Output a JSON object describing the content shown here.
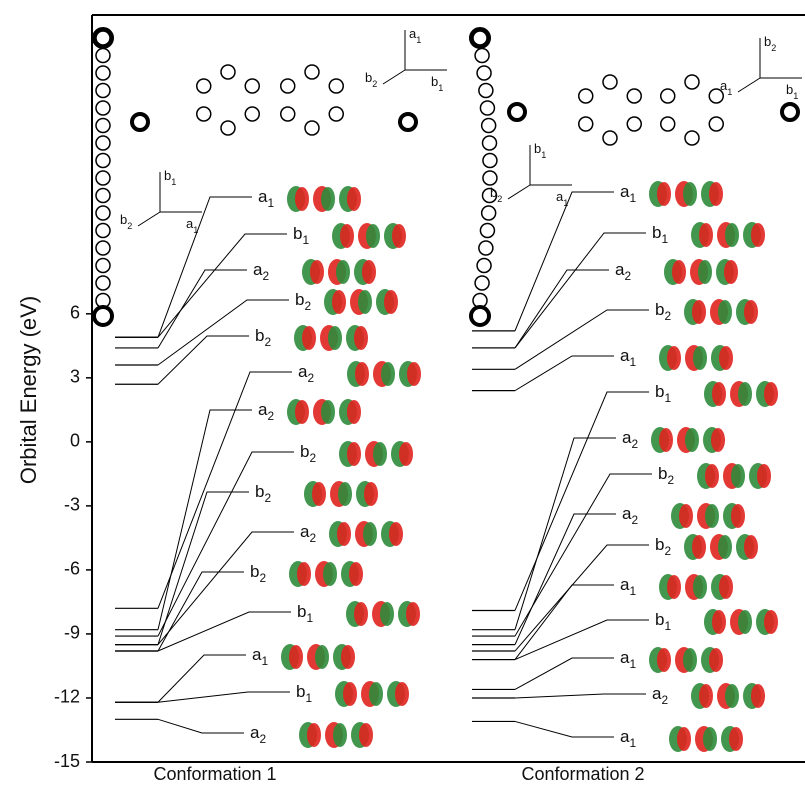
{
  "chart_data": {
    "type": "energy-levels",
    "y_label": "Orbital Energy (eV)",
    "ylim": [
      -15,
      20
    ],
    "yticks": [
      6,
      3,
      0,
      -3,
      -6,
      -9,
      -12,
      -15
    ],
    "conformations": [
      {
        "name": "Conformation 1",
        "labels": [
          "a1",
          "b1",
          "a2",
          "b2",
          "b2",
          "a2",
          "a2",
          "b2",
          "b2",
          "a2",
          "b2",
          "b1",
          "a1",
          "b1",
          "a2"
        ],
        "energies": [
          4.9,
          4.9,
          4.4,
          3.6,
          2.7,
          -7.8,
          -8.8,
          -9.1,
          -9.5,
          -9.5,
          -9.8,
          -9.8,
          -12.2,
          -12.2,
          -13.0
        ],
        "frames": [
          [
            "a1",
            "b1",
            "b2"
          ],
          [
            "b1",
            "a1",
            "b2"
          ]
        ]
      },
      {
        "name": "Conformation 2",
        "labels": [
          "a1",
          "b1",
          "a2",
          "b2",
          "a1",
          "b1",
          "a2",
          "b2",
          "a2",
          "b2",
          "a1",
          "b1",
          "a1",
          "a2",
          "a1"
        ],
        "energies": [
          5.2,
          4.4,
          4.4,
          3.4,
          2.4,
          -7.9,
          -8.8,
          -9.1,
          -9.5,
          -9.8,
          -10.2,
          -10.2,
          -11.6,
          -12.0,
          -13.1
        ],
        "frames": [
          [
            "b2",
            "b1",
            "a1"
          ],
          [
            "b1",
            "a1",
            "b2"
          ]
        ]
      }
    ]
  }
}
